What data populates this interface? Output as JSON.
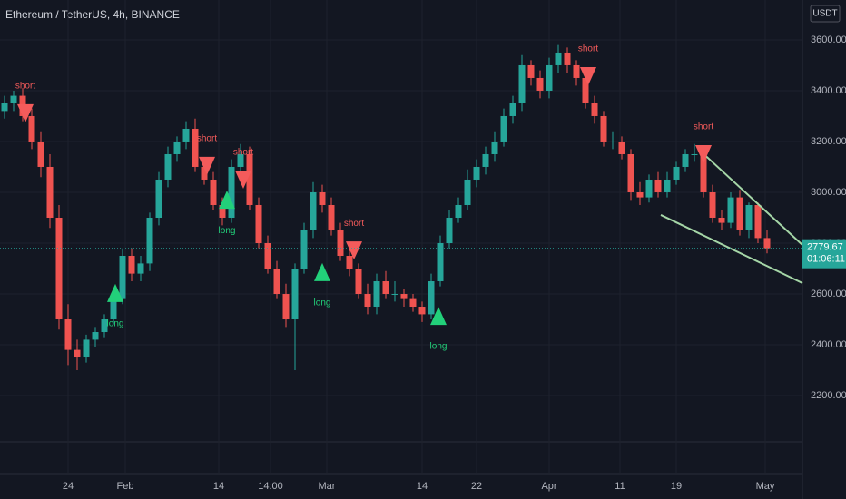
{
  "chart_data": {
    "type": "candlestick",
    "title": "Ethereum / TetherUS, 4h, BINANCE",
    "currency": "USDT",
    "up_color": "#26a69a",
    "down_color": "#ef5350",
    "grid": true,
    "ylim": [
      1893,
      3757
    ],
    "yticks": [
      {
        "value": 2200,
        "label": "2200.00"
      },
      {
        "value": 2400,
        "label": "2400.00"
      },
      {
        "value": 2600,
        "label": "2600.00"
      },
      {
        "value": 2800,
        "label": "2800.00"
      },
      {
        "value": 3000,
        "label": "3000.00"
      },
      {
        "value": 3200,
        "label": "3200.00"
      },
      {
        "value": 3400,
        "label": "3400.00"
      },
      {
        "value": 3600,
        "label": "3600.00"
      }
    ],
    "xlim": [
      -0.5,
      87.9
    ],
    "xticks": [
      {
        "value": 7,
        "label": "24"
      },
      {
        "value": 13.3,
        "label": "Feb"
      },
      {
        "value": 23.6,
        "label": "14"
      },
      {
        "value": 29.3,
        "label": "14:00"
      },
      {
        "value": 35.5,
        "label": "Mar"
      },
      {
        "value": 46,
        "label": "14"
      },
      {
        "value": 52,
        "label": "22"
      },
      {
        "value": 60,
        "label": "Apr"
      },
      {
        "value": 67.8,
        "label": "11"
      },
      {
        "value": 74,
        "label": "19"
      },
      {
        "value": 83.8,
        "label": "May"
      }
    ],
    "open": [
      3320,
      3350,
      3380,
      3300,
      3200,
      3100,
      2900,
      2500,
      2380,
      2350,
      2420,
      2450,
      2500,
      2580,
      2750,
      2680,
      2720,
      2900,
      3050,
      3150,
      3200,
      3250,
      3100,
      3050,
      2950,
      2900,
      3100,
      3150,
      2950,
      2800,
      2700,
      2600,
      2500,
      2700,
      2850,
      3000,
      2950,
      2850,
      2750,
      2700,
      2600,
      2550,
      2650,
      2600,
      2600,
      2580,
      2550,
      2520,
      2650,
      2800,
      2900,
      2950,
      3050,
      3100,
      3150,
      3200,
      3300,
      3350,
      3500,
      3450,
      3400,
      3500,
      3550,
      3500,
      3450,
      3350,
      3300,
      3200,
      3200,
      3150,
      3000,
      2980,
      3050,
      3000,
      3050,
      3100,
      3150,
      3150,
      3000,
      2900,
      2880,
      2980,
      2850,
      2950,
      2820
    ],
    "high": [
      3380,
      3400,
      3410,
      3330,
      3240,
      3150,
      2950,
      2560,
      2420,
      2440,
      2470,
      2520,
      2600,
      2780,
      2780,
      2750,
      2920,
      3080,
      3180,
      3220,
      3280,
      3290,
      3130,
      3080,
      2980,
      3130,
      3190,
      3180,
      2980,
      2830,
      2730,
      2640,
      2720,
      2880,
      3040,
      3030,
      2980,
      2880,
      2790,
      2720,
      2640,
      2680,
      2690,
      2650,
      2620,
      2600,
      2570,
      2680,
      2830,
      2930,
      2980,
      3090,
      3130,
      3180,
      3240,
      3330,
      3380,
      3540,
      3520,
      3480,
      3530,
      3580,
      3570,
      3520,
      3470,
      3380,
      3320,
      3240,
      3220,
      3170,
      3040,
      3070,
      3080,
      3080,
      3120,
      3170,
      3190,
      3170,
      3030,
      2930,
      3000,
      3010,
      2960,
      2960,
      2850
    ],
    "low": [
      3290,
      3320,
      3280,
      3170,
      3060,
      2860,
      2460,
      2320,
      2300,
      2330,
      2390,
      2430,
      2480,
      2560,
      2650,
      2650,
      2690,
      2870,
      3020,
      3120,
      3170,
      3080,
      3030,
      2930,
      2870,
      2880,
      3080,
      2930,
      2780,
      2680,
      2580,
      2470,
      2300,
      2680,
      2820,
      2920,
      2830,
      2730,
      2670,
      2580,
      2520,
      2520,
      2580,
      2570,
      2550,
      2530,
      2490,
      2500,
      2630,
      2780,
      2880,
      2930,
      3020,
      3070,
      3120,
      3180,
      3270,
      3320,
      3420,
      3370,
      3370,
      3470,
      3470,
      3420,
      3330,
      3270,
      3180,
      3170,
      3130,
      2970,
      2950,
      2960,
      2980,
      2980,
      3030,
      3080,
      3120,
      2980,
      2880,
      2850,
      2860,
      2830,
      2820,
      2800,
      2760
    ],
    "close": [
      3350,
      3380,
      3300,
      3200,
      3100,
      2900,
      2500,
      2380,
      2350,
      2420,
      2450,
      2500,
      2580,
      2750,
      2680,
      2720,
      2900,
      3050,
      3150,
      3200,
      3250,
      3100,
      3050,
      2950,
      2900,
      3100,
      3150,
      2950,
      2800,
      2700,
      2600,
      2500,
      2700,
      2850,
      3000,
      2950,
      2850,
      2750,
      2700,
      2600,
      2550,
      2650,
      2600,
      2600,
      2580,
      2550,
      2520,
      2650,
      2800,
      2900,
      2950,
      3050,
      3100,
      3150,
      3200,
      3300,
      3350,
      3500,
      3450,
      3400,
      3500,
      3550,
      3500,
      3450,
      3350,
      3300,
      3200,
      3200,
      3150,
      3000,
      2980,
      3050,
      3000,
      3050,
      3100,
      3150,
      3150,
      3000,
      2900,
      2880,
      2980,
      2850,
      2950,
      2820,
      2780
    ],
    "signals": [
      {
        "x": 2.3,
        "y": 3311,
        "label": "short"
      },
      {
        "x": 12.2,
        "y": 2604,
        "label": "long"
      },
      {
        "x": 22.3,
        "y": 3104,
        "label": "short"
      },
      {
        "x": 24.5,
        "y": 2971,
        "label": "long"
      },
      {
        "x": 26.3,
        "y": 3050,
        "label": "short"
      },
      {
        "x": 35,
        "y": 2686,
        "label": "long"
      },
      {
        "x": 38.5,
        "y": 2771,
        "label": "short"
      },
      {
        "x": 47.8,
        "y": 2514,
        "label": "long"
      },
      {
        "x": 64.3,
        "y": 3457,
        "label": "short"
      },
      {
        "x": 77,
        "y": 3150,
        "label": "short"
      }
    ],
    "trendlines": [
      {
        "x": [
          76.5,
          87.9
        ],
        "y": [
          3168,
          2793
        ]
      },
      {
        "x": [
          72.3,
          87.9
        ],
        "y": [
          2911,
          2643
        ]
      }
    ],
    "last_price": 2779.67,
    "countdown": "01:06:11"
  }
}
